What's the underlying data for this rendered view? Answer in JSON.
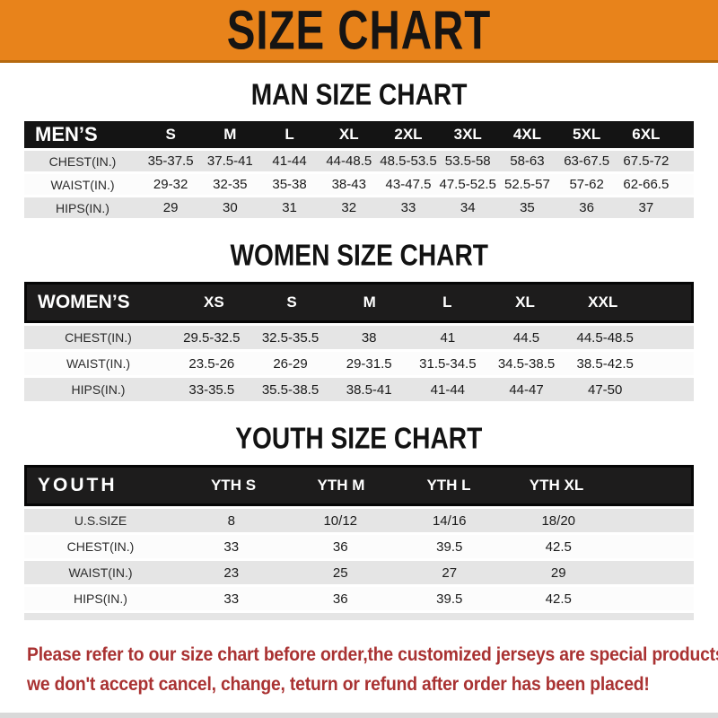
{
  "banner": {
    "title": "SIZE CHART",
    "bg_color": "#E8831B"
  },
  "colors": {
    "header_bar": "#141414",
    "row_gray": "#e5e5e5",
    "row_white": "#fcfcfc",
    "note_red": "#A93232"
  },
  "tables": [
    {
      "heading": "MAN SIZE CHART",
      "corner_label": "MEN’S",
      "columns": [
        "S",
        "M",
        "L",
        "XL",
        "2XL",
        "3XL",
        "4XL",
        "5XL",
        "6XL"
      ],
      "rows": [
        {
          "label": "CHEST(IN.)",
          "values": [
            "35-37.5",
            "37.5-41",
            "41-44",
            "44-48.5",
            "48.5-53.5",
            "53.5-58",
            "58-63",
            "63-67.5",
            "67.5-72"
          ]
        },
        {
          "label": "WAIST(IN.)",
          "values": [
            "29-32",
            "32-35",
            "35-38",
            "38-43",
            "43-47.5",
            "47.5-52.5",
            "52.5-57",
            "57-62",
            "62-66.5"
          ]
        },
        {
          "label": "HIPS(IN.)",
          "values": [
            "29",
            "30",
            "31",
            "32",
            "33",
            "34",
            "35",
            "36",
            "37"
          ]
        }
      ]
    },
    {
      "heading": "WOMEN SIZE CHART",
      "corner_label": "WOMEN’S",
      "columns": [
        "XS",
        "S",
        "M",
        "L",
        "XL",
        "XXL"
      ],
      "rows": [
        {
          "label": "CHEST(IN.)",
          "values": [
            "29.5-32.5",
            "32.5-35.5",
            "38",
            "41",
            "44.5",
            "44.5-48.5"
          ]
        },
        {
          "label": "WAIST(IN.)",
          "values": [
            "23.5-26",
            "26-29",
            "29-31.5",
            "31.5-34.5",
            "34.5-38.5",
            "38.5-42.5"
          ]
        },
        {
          "label": "HIPS(IN.)",
          "values": [
            "33-35.5",
            "35.5-38.5",
            "38.5-41",
            "41-44",
            "44-47",
            "47-50"
          ]
        }
      ]
    },
    {
      "heading": "YOUTH SIZE CHART",
      "corner_label": "YOUTH",
      "columns": [
        "YTH S",
        "YTH M",
        "YTH L",
        "YTH XL"
      ],
      "rows": [
        {
          "label": "U.S.SIZE",
          "values": [
            "8",
            "10/12",
            "14/16",
            "18/20"
          ]
        },
        {
          "label": "CHEST(IN.)",
          "values": [
            "33",
            "36",
            "39.5",
            "42.5"
          ]
        },
        {
          "label": "WAIST(IN.)",
          "values": [
            "23",
            "25",
            "27",
            "29"
          ]
        },
        {
          "label": "HIPS(IN.)",
          "values": [
            "33",
            "36",
            "39.5",
            "42.5"
          ]
        }
      ]
    }
  ],
  "note": {
    "line1": "Please refer to our size chart before order,the customized jerseys are special products,",
    "line2": "we don't accept cancel, change, teturn or refund after order has been placed!"
  }
}
